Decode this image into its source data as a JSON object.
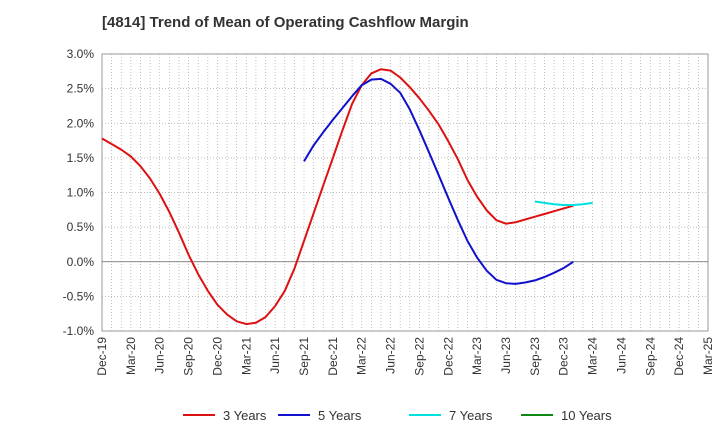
{
  "chart_data": {
    "type": "line",
    "title": "[4814]  Trend of Mean of Operating Cashflow Margin",
    "xlabel": "",
    "ylabel": "",
    "x_ticks": [
      "Dec-19",
      "Mar-20",
      "Jun-20",
      "Sep-20",
      "Dec-20",
      "Mar-21",
      "Jun-21",
      "Sep-21",
      "Dec-21",
      "Mar-22",
      "Jun-22",
      "Sep-22",
      "Dec-22",
      "Mar-23",
      "Jun-23",
      "Sep-23",
      "Dec-23",
      "Mar-24",
      "Jun-24",
      "Sep-24",
      "Dec-24",
      "Mar-25"
    ],
    "y_ticks": [
      "3.0%",
      "2.5%",
      "2.0%",
      "1.5%",
      "1.0%",
      "0.5%",
      "0.0%",
      "-0.5%",
      "-1.0%"
    ],
    "ylim": [
      -1.0,
      3.0
    ],
    "grid": true,
    "legend_position": "bottom",
    "series": [
      {
        "name": "3 Years",
        "color": "#dd1111",
        "start": "Dec-19",
        "values": [
          1.78,
          1.7,
          1.62,
          1.52,
          1.38,
          1.2,
          0.98,
          0.72,
          0.42,
          0.1,
          -0.18,
          -0.42,
          -0.62,
          -0.76,
          -0.86,
          -0.9,
          -0.88,
          -0.8,
          -0.64,
          -0.42,
          -0.1,
          0.3,
          0.7,
          1.1,
          1.5,
          1.9,
          2.28,
          2.55,
          2.72,
          2.78,
          2.76,
          2.66,
          2.52,
          2.36,
          2.18,
          1.98,
          1.74,
          1.48,
          1.18,
          0.94,
          0.74,
          0.6,
          0.55,
          0.57,
          0.61,
          0.65,
          0.69,
          0.73,
          0.77,
          0.81
        ]
      },
      {
        "name": "5 Years",
        "color": "#1111cc",
        "start": "Sep-21",
        "values": [
          1.45,
          1.68,
          1.87,
          2.05,
          2.22,
          2.39,
          2.55,
          2.63,
          2.64,
          2.57,
          2.44,
          2.2,
          1.9,
          1.58,
          1.25,
          0.92,
          0.6,
          0.3,
          0.06,
          -0.13,
          -0.26,
          -0.31,
          -0.32,
          -0.3,
          -0.27,
          -0.22,
          -0.16,
          -0.09,
          0.0
        ]
      },
      {
        "name": "7 Years",
        "color": "#00e0e0",
        "start": "Sep-23",
        "values": [
          0.87,
          0.85,
          0.83,
          0.82,
          0.82,
          0.83,
          0.85
        ]
      },
      {
        "name": "10 Years",
        "color": "#118811",
        "start": "Sep-23",
        "values": []
      }
    ]
  }
}
